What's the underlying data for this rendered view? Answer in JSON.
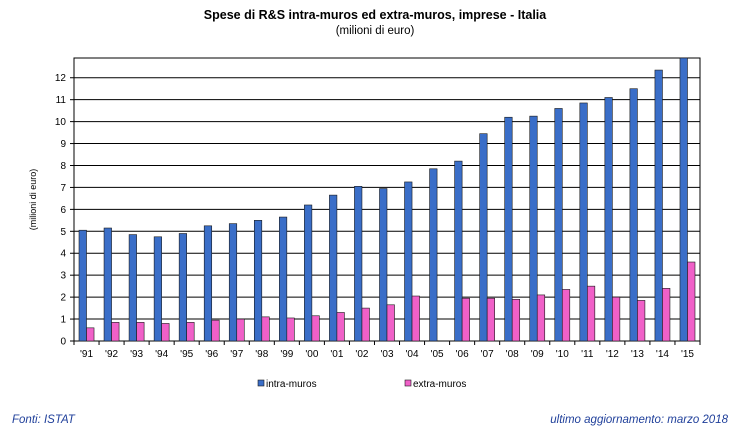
{
  "chart_data": {
    "type": "bar",
    "title": "Spese di R&S intra-muros ed extra-muros, imprese - Italia",
    "subtitle": "(milioni di euro)",
    "ylabel": "(milioni di euro)",
    "xlabel": "",
    "ylim": [
      0,
      12.9
    ],
    "yticks": [
      0,
      1,
      2,
      3,
      4,
      5,
      6,
      7,
      8,
      9,
      10,
      11,
      12
    ],
    "grid": "horizontal",
    "legend_position": "bottom",
    "categories": [
      "'91",
      "'92",
      "'93",
      "'94",
      "'95",
      "'96",
      "'97",
      "'98",
      "'99",
      "'00",
      "'01",
      "'02",
      "'03",
      "'04",
      "'05",
      "'06",
      "'07",
      "'08",
      "'09",
      "'10",
      "'11",
      "'12",
      "'13",
      "'14",
      "'15"
    ],
    "series": [
      {
        "name": "intra-muros",
        "color": "#3a6ec8",
        "values": [
          5.05,
          5.15,
          4.85,
          4.75,
          4.9,
          5.25,
          5.35,
          5.5,
          5.65,
          6.2,
          6.65,
          7.05,
          6.95,
          7.25,
          7.85,
          8.2,
          9.45,
          10.2,
          10.25,
          10.6,
          10.85,
          11.1,
          11.5,
          12.35,
          12.9
        ]
      },
      {
        "name": "extra-muros",
        "color": "#f060c8",
        "values": [
          0.6,
          0.85,
          0.85,
          0.8,
          0.85,
          0.95,
          1.0,
          1.1,
          1.05,
          1.15,
          1.3,
          1.5,
          1.65,
          2.05,
          0,
          1.95,
          1.95,
          1.9,
          2.1,
          2.35,
          2.5,
          2.0,
          1.85,
          2.4,
          3.6
        ]
      }
    ]
  },
  "footer": {
    "source": "Fonti: ISTAT",
    "updated": "ultimo aggiornamento: marzo 2018"
  }
}
